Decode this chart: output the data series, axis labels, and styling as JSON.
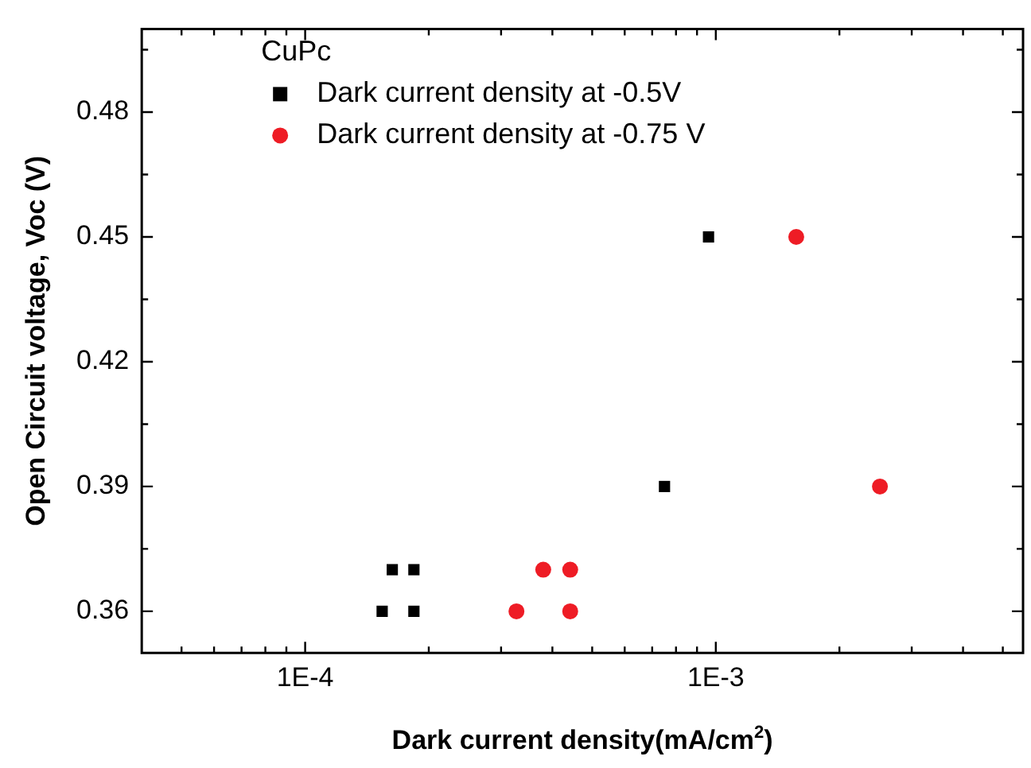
{
  "chart_data": {
    "type": "scatter",
    "xlabel": "Dark current density(mA/cm$^{2}$)",
    "ylabel": "Open Circuit voltage, Voc (V)",
    "legend_title": "CuPc",
    "legend": "top left",
    "log": "x",
    "grid": false,
    "xlim": [
      4e-05,
      0.0056
    ],
    "ylim": [
      0.35,
      0.5
    ],
    "xticks": [
      {
        "value": 5e-05,
        "label": null
      },
      {
        "value": 6e-05,
        "label": null
      },
      {
        "value": 7e-05,
        "label": null
      },
      {
        "value": 8e-05,
        "label": null
      },
      {
        "value": 9e-05,
        "label": null
      },
      {
        "value": 0.0001,
        "label": "1E-4"
      },
      {
        "value": 0.0002,
        "label": null
      },
      {
        "value": 0.0003,
        "label": null
      },
      {
        "value": 0.0004,
        "label": null
      },
      {
        "value": 0.0005,
        "label": null
      },
      {
        "value": 0.0006,
        "label": null
      },
      {
        "value": 0.0007,
        "label": null
      },
      {
        "value": 0.0008,
        "label": null
      },
      {
        "value": 0.0009,
        "label": null
      },
      {
        "value": 0.001,
        "label": "1E-3"
      },
      {
        "value": 0.002,
        "label": null
      },
      {
        "value": 0.003,
        "label": null
      },
      {
        "value": 0.004,
        "label": null
      },
      {
        "value": 0.005,
        "label": null
      }
    ],
    "yticks": [
      {
        "value": 0.375,
        "label": null
      },
      {
        "value": 0.405,
        "label": null
      },
      {
        "value": 0.435,
        "label": null
      },
      {
        "value": 0.465,
        "label": null
      },
      {
        "value": 0.495,
        "label": null
      },
      {
        "value": 0.36,
        "label": "0.36"
      },
      {
        "value": 0.39,
        "label": "0.39"
      },
      {
        "value": 0.42,
        "label": "0.42"
      },
      {
        "value": 0.45,
        "label": "0.45"
      },
      {
        "value": 0.48,
        "label": "0.48"
      }
    ],
    "series": [
      {
        "name": "Dark current density at -0.5V",
        "color": "#000000",
        "marker": "square",
        "x": [
          0.000154,
          0.000163,
          0.000184,
          0.000184,
          0.00075,
          0.00096
        ],
        "values": [
          0.36,
          0.37,
          0.37,
          0.36,
          0.39,
          0.45
        ]
      },
      {
        "name": "Dark current density at -0.75 V",
        "color": "#ee1c25",
        "marker": "circle",
        "x": [
          0.000327,
          0.00038,
          0.000442,
          0.000442,
          0.00157,
          0.00251
        ],
        "values": [
          0.36,
          0.37,
          0.37,
          0.36,
          0.45,
          0.39
        ]
      }
    ]
  }
}
